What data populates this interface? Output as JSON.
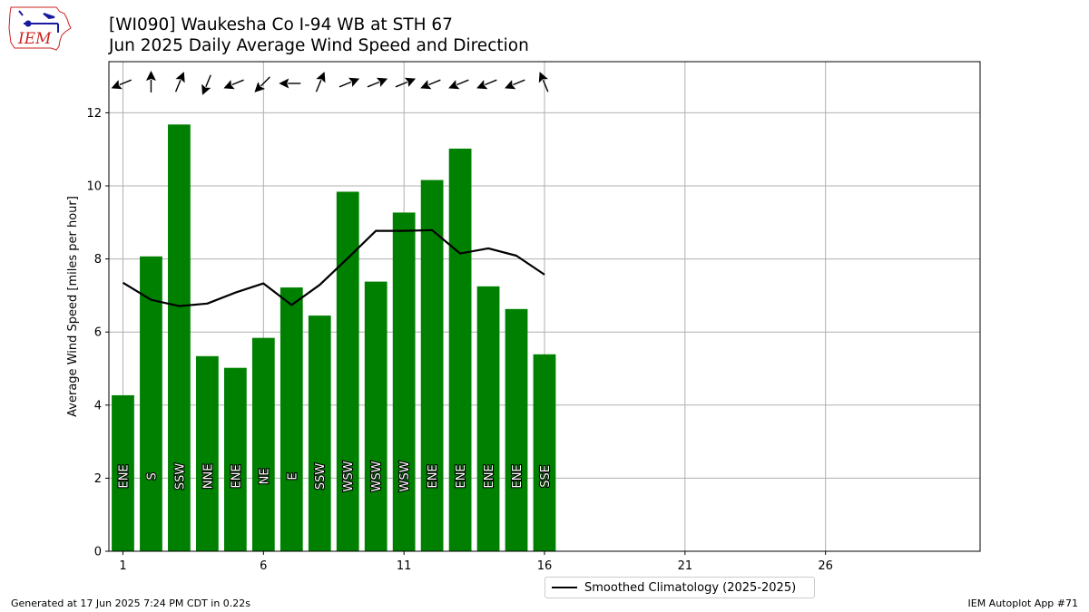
{
  "header": {
    "logo_text": "IEM",
    "title_line1": "[WI090] Waukesha Co I-94 WB at STH 67",
    "title_line2": "Jun 2025 Daily Average Wind Speed and Direction"
  },
  "footer": {
    "generated": "Generated at 17 Jun 2025 7:24 PM CDT in 0.22s",
    "app": "IEM Autoplot App #71"
  },
  "legend": {
    "climatology_label": "Smoothed Climatology (2025-2025)"
  },
  "colors": {
    "bar": "#008000",
    "climatology_line": "#000000",
    "grid": "#b0b0b0",
    "label_text": "#ffffff",
    "logo_accent": "#cc2222",
    "logo_blue": "#1a1aa0"
  },
  "chart_data": {
    "type": "bar",
    "title": "[WI090] Waukesha Co I-94 WB at STH 67\nJun 2025 Daily Average Wind Speed and Direction",
    "xlabel": "",
    "ylabel": "Average Wind Speed [miles per hour]",
    "xlim": [
      0.5,
      31.5
    ],
    "ylim": [
      0,
      13.4
    ],
    "xticks": [
      1,
      6,
      11,
      16,
      21,
      26
    ],
    "yticks": [
      0,
      2,
      4,
      6,
      8,
      10,
      12
    ],
    "grid": true,
    "legend_position": "bottom-center",
    "days": [
      1,
      2,
      3,
      4,
      5,
      6,
      7,
      8,
      9,
      10,
      11,
      12,
      13,
      14,
      15,
      16
    ],
    "values": [
      4.27,
      8.07,
      11.68,
      5.34,
      5.02,
      5.84,
      7.22,
      6.45,
      9.84,
      7.38,
      9.27,
      10.16,
      11.02,
      7.25,
      6.63,
      5.39
    ],
    "directions": [
      "ENE",
      "S",
      "SSW",
      "NNE",
      "ENE",
      "NE",
      "E",
      "SSW",
      "WSW",
      "WSW",
      "WSW",
      "ENE",
      "ENE",
      "ENE",
      "ENE",
      "SSE"
    ],
    "series": [
      {
        "name": "Smoothed Climatology (2025-2025)",
        "type": "line",
        "x": [
          1,
          2,
          3,
          4,
          5,
          6,
          7,
          8,
          9,
          10,
          11,
          12,
          13,
          14,
          15,
          16
        ],
        "values": [
          7.35,
          6.88,
          6.71,
          6.78,
          7.08,
          7.33,
          6.74,
          7.29,
          8.02,
          8.77,
          8.77,
          8.79,
          8.15,
          8.29,
          8.09,
          7.57
        ]
      }
    ]
  }
}
